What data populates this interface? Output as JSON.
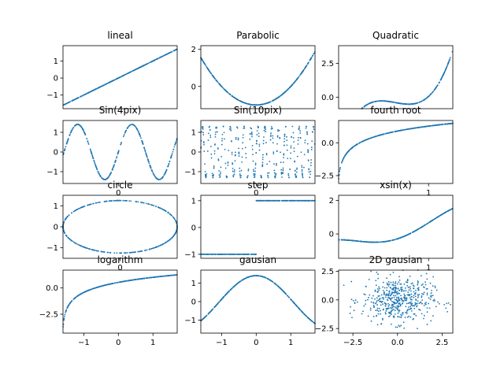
{
  "figure": {
    "background": "#ffffff",
    "point_color": "#1f77b4"
  },
  "chart_data": [
    {
      "type": "scatter",
      "title": "lineal",
      "function": "y = x",
      "x_range": [
        -1.6,
        1.7
      ],
      "ylim": [
        -1.8,
        1.9
      ],
      "yticks": [
        -1,
        0,
        1
      ],
      "xticks": [],
      "grid": false
    },
    {
      "type": "scatter",
      "title": "Parabolic",
      "function": "y = x^2 - 1",
      "x_range": [
        -1.6,
        1.7
      ],
      "ylim": [
        -1.2,
        2.2
      ],
      "yticks": [
        0,
        2
      ],
      "xticks": [],
      "grid": false
    },
    {
      "type": "scatter",
      "title": "Quadratic",
      "function": "y = x^3 - x^2 (approx.)",
      "x_range": [
        -1.6,
        1.7
      ],
      "ylim": [
        -0.85,
        3.8
      ],
      "yticks": [
        0.0,
        2.5
      ],
      "xticks": [],
      "grid": false
    },
    {
      "type": "scatter",
      "title": "Sin(4pix)",
      "function": "y = 1.4 sin(4x)",
      "x_range": [
        -1.6,
        1.7
      ],
      "ylim": [
        -1.6,
        1.6
      ],
      "yticks": [
        -1,
        0,
        1
      ],
      "xticks": [
        "0"
      ],
      "grid": false
    },
    {
      "type": "scatter",
      "title": "Sin(10pix)",
      "function": "y = 1.3 sin(10 pi x), random x",
      "x_range": [
        -1.6,
        1.7
      ],
      "ylim": [
        -1.6,
        1.6
      ],
      "yticks": [
        -1,
        0,
        1
      ],
      "xticks": [
        "0"
      ],
      "grid": false
    },
    {
      "type": "scatter",
      "title": "fourth root",
      "function": "y = log-like curve",
      "x_range": [
        -1.6,
        1.7
      ],
      "ylim": [
        -3.1,
        1.7
      ],
      "yticks": [
        0.0,
        -2.5
      ],
      "xticks": [
        "1"
      ],
      "grid": false
    },
    {
      "type": "scatter",
      "title": "circle",
      "function": "ellipse radius 1.7 x 1.25",
      "x_range": [
        -1.7,
        1.7
      ],
      "ylim": [
        -1.5,
        1.5
      ],
      "yticks": [
        -1,
        0,
        1
      ],
      "xticks": [
        "0"
      ],
      "grid": false
    },
    {
      "type": "scatter",
      "title": "step",
      "function": "y = sign(x)",
      "x_range": [
        -1.6,
        1.7
      ],
      "ylim": [
        -1.15,
        1.2
      ],
      "yticks": [
        -1,
        0,
        1
      ],
      "xticks": [],
      "grid": false
    },
    {
      "type": "scatter",
      "title": "xsin(x)",
      "function": "y = x sin(x) style curve",
      "x_range": [
        -1.6,
        1.7
      ],
      "ylim": [
        -1.45,
        2.3
      ],
      "yticks": [
        0,
        2
      ],
      "xticks": [
        "1"
      ],
      "grid": false
    },
    {
      "type": "scatter",
      "title": "logarithm",
      "function": "y = log(x + 1.6)",
      "x_range": [
        -1.6,
        1.7
      ],
      "ylim": [
        -4.3,
        1.7
      ],
      "yticks": [
        0.0,
        -2.5
      ],
      "xticks": [
        "-1",
        "0",
        "1"
      ],
      "grid": false
    },
    {
      "type": "scatter",
      "title": "gausian",
      "function": "y = 1.4 cos-shaped bump",
      "x_range": [
        -1.6,
        1.7
      ],
      "ylim": [
        -1.7,
        1.7
      ],
      "yticks": [
        -1,
        0,
        1
      ],
      "xticks": [
        "-1",
        "0",
        "1"
      ],
      "grid": false
    },
    {
      "type": "scatter",
      "title": "2D gausian",
      "function": "x, y ~ N(0, 1)",
      "xlim": [
        -3.3,
        3.1
      ],
      "ylim": [
        -2.9,
        2.6
      ],
      "yticks": [
        -2.5,
        0.0,
        2.5
      ],
      "xticks": [
        "-2.5",
        "0.0",
        "2.5"
      ],
      "n_points": 500,
      "grid": false
    }
  ]
}
